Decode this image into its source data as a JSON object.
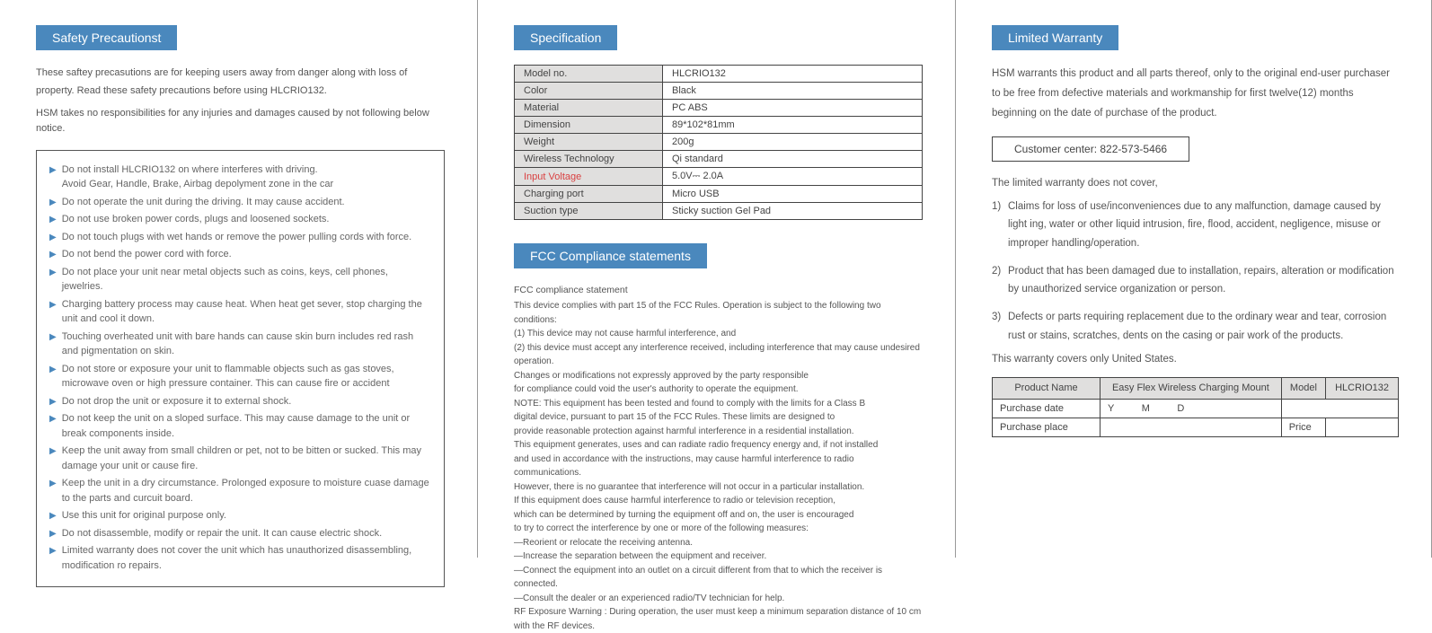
{
  "colors": {
    "accent": "#4a88bd",
    "header_bg": "#e0dfde",
    "border": "#444444",
    "text": "#555555",
    "red": "#d94141"
  },
  "col1": {
    "title": "Safety Precautionst",
    "intro": "These saftey precasutions are for keeping users away from danger along with loss of property. Read these safety precautions before using HLCRIO132.",
    "notice": "HSM takes no responsibilities for any injuries and damages caused by not following below notice.",
    "items": [
      "Do not install HLCRIO132 on where interferes with driving.\nAvoid Gear, Handle, Brake, Airbag depolyment zone in the car",
      "Do not operate the unit during the driving. It may cause accident.",
      "Do not use broken power cords, plugs and loosened sockets.",
      "Do not touch plugs with wet hands or remove the power pulling cords with force.",
      "Do not bend the power cord with force.",
      "Do not place your unit near metal objects such as coins, keys, cell phones, jewelries.",
      "Charging battery process may cause heat. When heat get sever, stop charging the unit and cool it down.",
      "Touching overheated unit with bare hands can cause skin burn includes red rash and pigmentation on skin.",
      "Do not store or exposure your unit to flammable objects such as gas stoves, microwave oven or high pressure container. This can cause fire or accident",
      "Do not drop the unit or exposure it to external shock.",
      "Do not keep the unit on a sloped surface. This may cause damage to the unit or break components inside.",
      "Keep the unit away from small children or pet, not to be bitten or sucked. This may damage your unit or cause fire.",
      "Keep the unit in a dry circumstance. Prolonged exposure to moisture cuase damage to the parts and curcuit board.",
      "Use this unit for original purpose only.",
      "Do not disassemble, modify or repair the unit. It can cause electric shock.",
      "Limited warranty does not cover the unit which has unauthorized disassembling, modification ro repairs."
    ]
  },
  "col2": {
    "spec_title": "Specification",
    "spec_rows": [
      {
        "k": "Model no.",
        "v": "HLCRIO132",
        "red": false
      },
      {
        "k": "Color",
        "v": "Black",
        "red": false
      },
      {
        "k": "Material",
        "v": "PC ABS",
        "red": false
      },
      {
        "k": "Dimension",
        "v": "89*102*81mm",
        "red": false
      },
      {
        "k": "Weight",
        "v": "200g",
        "red": false
      },
      {
        "k": "Wireless Technology",
        "v": "Qi standard",
        "red": false
      },
      {
        "k": "Input Voltage",
        "v": "5.0V⎓ 2.0A",
        "red": true
      },
      {
        "k": "Charging port",
        "v": "Micro USB",
        "red": false
      },
      {
        "k": "Suction type",
        "v": "Sticky suction Gel Pad",
        "red": false
      }
    ],
    "fcc_title": "FCC Compliance statements",
    "fcc_heading": "FCC compliance statement",
    "fcc_lines": [
      "This device complies with part 15 of the FCC Rules. Operation is subject to the following two conditions:",
      "(1) This device may not cause harmful interference, and",
      "(2) this device must accept any interference received, including interference that may cause undesired operation.",
      " Changes or modifications not expressly approved by the party responsible",
      "for compliance could void the user's authority to operate the equipment.",
      " NOTE: This equipment has been tested and found to comply with the limits for a Class B",
      "digital device, pursuant to part 15 of the FCC Rules. These limits are designed to",
      "provide reasonable protection against harmful interference in a residential installation.",
      "This equipment generates, uses and can radiate radio frequency energy and, if not installed",
      "and used in accordance with the instructions, may cause harmful interference to radio communications.",
      "However, there is no guarantee that interference will not occur in a particular installation.",
      "If this equipment does cause harmful interference to radio or television reception,",
      "which can be determined by turning the equipment off and on, the user is encouraged",
      "to try to correct the interference by one or more of the following measures:",
      "—Reorient or relocate the receiving antenna.",
      "—Increase the separation between the equipment and receiver.",
      "—Connect the equipment into an outlet on a circuit different from that to which the receiver is connected.",
      "—Consult the dealer or an experienced radio/TV technician for help.",
      "RF Exposure Warning : During operation, the user must keep a minimum separation distance of 10 cm with the RF devices."
    ]
  },
  "col3": {
    "title": "Limited Warranty",
    "intro": "HSM warrants this product and all parts thereof, only to the original end-user purchaser to be free from defective materials and workmanship for first twelve(12) months beginning on the date of purchase of the product.",
    "customer_center": "Customer center: 822-573-5466",
    "not_cover_label": "The limited warranty does not cover,",
    "not_cover": [
      "Claims for loss of use/inconveniences due to any malfunction, damage caused by light ing, water or other liquid intrusion, fire, flood, accident, negligence, misuse or improper handling/operation.",
      "Product that has been damaged due to installation, repairs, alteration or modification by unauthorized service organization or person.",
      "Defects or parts requiring replacement due to the ordinary wear and tear, corrosion rust or stains, scratches, dents on the casing or pair work of the products."
    ],
    "covers": "This warranty covers only United States.",
    "table": {
      "headers": [
        "Product Name",
        "Easy Flex Wireless Charging Mount",
        "Model",
        "HLCRIO132"
      ],
      "rows": [
        {
          "label": "Purchase date",
          "c1": "Y          M          D",
          "c2_label": "",
          "c2": ""
        },
        {
          "label": "Purchase place",
          "c1": "",
          "c2_label": "Price",
          "c2": ""
        }
      ]
    }
  }
}
